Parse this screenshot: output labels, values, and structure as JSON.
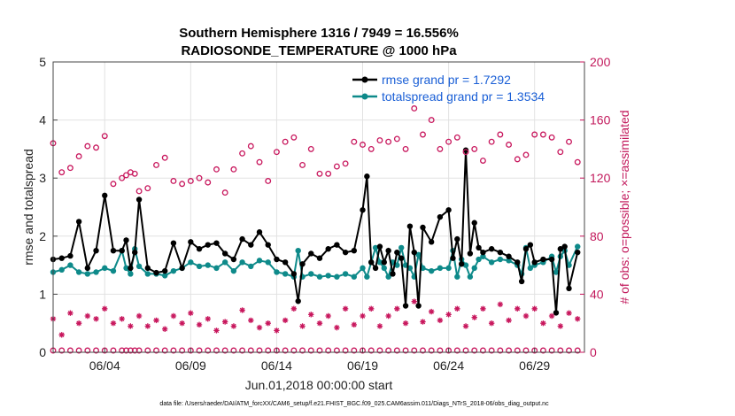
{
  "colors": {
    "rmse": "#000000",
    "spread": "#0e8a8a",
    "obs": "#c8175d",
    "legend_text": "#1a5fd6"
  },
  "chart_data": {
    "type": "line",
    "title_line1": "Southern Hemisphere 1316 / 7949 = 16.556%",
    "title_line2": "RADIOSONDE_TEMPERATURE @ 1000 hPa",
    "xlabel": "Jun.01,2018 00:00:00 start",
    "ylabel_left": "rmse and totalspread",
    "ylabel_right": "# of obs: o=possible; ×=assimilated",
    "x_range": [
      0.0,
      30.9
    ],
    "xtick_values": [
      3,
      8,
      13,
      18,
      23,
      28
    ],
    "xtick_labels": [
      "06/04",
      "06/09",
      "06/14",
      "06/19",
      "06/24",
      "06/29"
    ],
    "y_left_range": [
      0,
      5
    ],
    "y_left_ticks": [
      "0",
      "1",
      "2",
      "3",
      "4",
      "5"
    ],
    "y_right_range": [
      0,
      200
    ],
    "y_right_ticks": [
      "0",
      "40",
      "80",
      "120",
      "160",
      "200"
    ],
    "legend": [
      {
        "label": "rmse grand pr = 1.7292"
      },
      {
        "label": "totalspread grand pr = 1.3534"
      }
    ],
    "footnote": "data file: /Users/raeder/DAI/ATM_forcXX/CAM6_setup/f.e21.FHIST_BGC.f09_025.CAM6assim.011/Diags_NTrS_2018-06/obs_diag_output.nc",
    "series": {
      "rmse_x": [
        0,
        0.5,
        1,
        1.5,
        2,
        2.5,
        3,
        3.5,
        4,
        4.25,
        4.5,
        4.75,
        5,
        5.5,
        6,
        6.5,
        7,
        7.5,
        8,
        8.5,
        9,
        9.5,
        10,
        10.5,
        11,
        11.5,
        12,
        12.5,
        13,
        13.5,
        14,
        14.25,
        14.5,
        15,
        15.5,
        16,
        16.5,
        17,
        17.5,
        18,
        18.25,
        18.5,
        18.75,
        19,
        19.25,
        19.5,
        19.75,
        20,
        20.25,
        20.5,
        20.75,
        21,
        21.25,
        21.5,
        22,
        22.5,
        23,
        23.25,
        23.5,
        23.75,
        24,
        24.25,
        24.5,
        24.75,
        25,
        25.5,
        26,
        26.5,
        27,
        27.25,
        27.5,
        27.75,
        28,
        28.5,
        29,
        29.25,
        29.5,
        29.75,
        30,
        30.5
      ],
      "rmse_y": [
        1.6,
        1.62,
        1.66,
        2.25,
        1.45,
        1.75,
        2.7,
        1.75,
        1.75,
        1.93,
        1.45,
        1.72,
        2.63,
        1.45,
        1.37,
        1.4,
        1.88,
        1.45,
        1.9,
        1.78,
        1.85,
        1.88,
        1.7,
        1.6,
        1.95,
        1.85,
        2.07,
        1.85,
        1.6,
        1.55,
        1.35,
        0.88,
        1.52,
        1.7,
        1.62,
        1.78,
        1.85,
        1.72,
        1.75,
        2.45,
        3.03,
        1.55,
        1.45,
        1.82,
        1.55,
        1.75,
        1.35,
        1.72,
        1.62,
        0.8,
        2.17,
        1.72,
        0.8,
        2.15,
        1.9,
        2.33,
        2.45,
        1.62,
        1.95,
        1.52,
        3.48,
        1.7,
        2.23,
        1.8,
        1.72,
        1.78,
        1.72,
        1.65,
        1.55,
        1.22,
        1.78,
        1.85,
        1.55,
        1.6,
        1.6,
        0.68,
        1.78,
        1.82,
        1.1,
        1.72
      ],
      "spread_x": [
        0,
        0.5,
        1,
        1.5,
        2,
        2.5,
        3,
        3.5,
        4,
        4.25,
        4.5,
        4.75,
        5,
        5.5,
        6,
        6.5,
        7,
        7.5,
        8,
        8.5,
        9,
        9.5,
        10,
        10.5,
        11,
        11.5,
        12,
        12.5,
        13,
        13.5,
        14,
        14.25,
        14.5,
        15,
        15.5,
        16,
        16.5,
        17,
        17.5,
        18,
        18.25,
        18.5,
        18.75,
        19,
        19.25,
        19.5,
        19.75,
        20,
        20.25,
        20.5,
        20.75,
        21,
        21.25,
        21.5,
        22,
        22.5,
        23,
        23.25,
        23.5,
        23.75,
        24,
        24.25,
        24.5,
        24.75,
        25,
        25.5,
        26,
        26.5,
        27,
        27.25,
        27.5,
        27.75,
        28,
        28.5,
        29,
        29.25,
        29.5,
        29.75,
        30,
        30.5
      ],
      "spread_y": [
        1.38,
        1.42,
        1.5,
        1.38,
        1.35,
        1.38,
        1.45,
        1.4,
        1.75,
        1.45,
        1.35,
        1.78,
        1.48,
        1.35,
        1.35,
        1.32,
        1.4,
        1.45,
        1.55,
        1.48,
        1.5,
        1.45,
        1.55,
        1.4,
        1.55,
        1.48,
        1.58,
        1.55,
        1.38,
        1.35,
        1.3,
        1.75,
        1.3,
        1.35,
        1.3,
        1.32,
        1.3,
        1.35,
        1.3,
        1.45,
        1.3,
        1.55,
        1.8,
        1.55,
        1.45,
        1.3,
        1.55,
        1.5,
        1.8,
        1.5,
        1.45,
        1.3,
        1.68,
        1.45,
        1.4,
        1.45,
        1.45,
        1.75,
        1.3,
        1.6,
        1.5,
        1.3,
        1.45,
        1.6,
        1.65,
        1.55,
        1.6,
        1.58,
        1.5,
        1.35,
        1.8,
        1.45,
        1.5,
        1.55,
        1.65,
        1.38,
        1.65,
        1.75,
        1.5,
        1.82
      ],
      "possible_x": [
        0,
        0.5,
        1,
        1.5,
        2,
        2.5,
        3,
        3.5,
        4,
        4.25,
        4.5,
        4.75,
        5,
        5.5,
        6,
        6.5,
        7,
        7.5,
        8,
        8.5,
        9,
        9.5,
        10,
        10.5,
        11,
        11.5,
        12,
        12.5,
        13,
        13.5,
        14,
        14.5,
        15,
        15.5,
        16,
        16.5,
        17,
        17.5,
        18,
        18.5,
        19,
        19.5,
        20,
        20.5,
        21,
        21.5,
        22,
        22.5,
        23,
        23.5,
        24,
        24.5,
        25,
        25.5,
        26,
        26.5,
        27,
        27.5,
        28,
        28.5,
        29,
        29.5,
        30,
        30.5
      ],
      "possible_y": [
        144,
        124,
        127,
        135,
        142,
        141,
        149,
        116,
        120,
        122,
        124,
        123,
        111,
        113,
        129,
        134,
        118,
        116,
        118,
        120,
        117,
        126,
        110,
        126,
        137,
        142,
        131,
        118,
        138,
        145,
        148,
        129,
        140,
        123,
        123,
        128,
        130,
        145,
        143,
        140,
        146,
        145,
        147,
        140,
        168,
        150,
        160,
        140,
        145,
        148,
        138,
        140,
        132,
        145,
        150,
        143,
        133,
        136,
        150,
        150,
        148,
        138,
        145,
        131
      ],
      "assim_x": [
        0,
        0.5,
        1,
        1.5,
        2,
        2.5,
        3,
        3.5,
        4,
        4.5,
        5,
        5.5,
        6,
        6.5,
        7,
        7.5,
        8,
        8.5,
        9,
        9.5,
        10,
        10.5,
        11,
        11.5,
        12,
        12.5,
        13,
        13.5,
        14,
        14.5,
        15,
        15.5,
        16,
        16.5,
        17,
        17.5,
        18,
        18.5,
        19,
        19.5,
        20,
        20.5,
        21,
        21.5,
        22,
        22.5,
        23,
        23.5,
        24,
        24.5,
        25,
        25.5,
        26,
        26.5,
        27,
        27.5,
        28,
        28.5,
        29,
        29.5,
        30,
        30.5
      ],
      "assim_y": [
        23,
        12,
        27,
        20,
        25,
        23,
        30,
        20,
        23,
        18,
        25,
        18,
        22,
        16,
        25,
        20,
        27,
        19,
        23,
        15,
        21,
        18,
        29,
        22,
        17,
        20,
        15,
        22,
        30,
        18,
        26,
        20,
        25,
        17,
        30,
        19,
        25,
        30,
        18,
        25,
        30,
        20,
        35,
        21,
        28,
        22,
        26,
        30,
        18,
        24,
        30,
        20,
        33,
        22,
        30,
        25,
        30,
        20,
        25,
        18,
        27,
        23
      ]
    }
  }
}
